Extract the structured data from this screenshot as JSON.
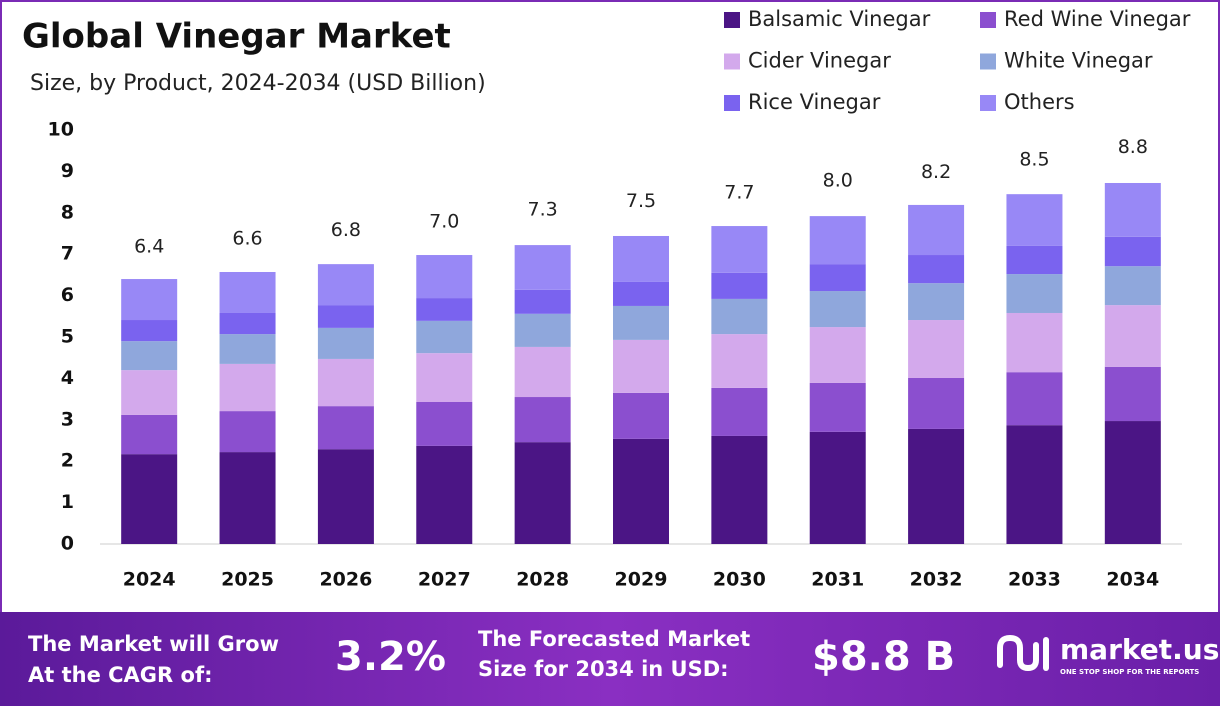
{
  "chart_data": {
    "type": "bar",
    "stacked": true,
    "title": "Global Vinegar Market",
    "subtitle": "Size, by Product, 2024-2034 (USD Billion)",
    "categories": [
      "2024",
      "2025",
      "2026",
      "2027",
      "2028",
      "2029",
      "2030",
      "2031",
      "2032",
      "2033",
      "2034"
    ],
    "series": [
      {
        "name": "Balsamic Vinegar",
        "color": "#4b1585",
        "values": [
          2.17,
          2.22,
          2.29,
          2.37,
          2.46,
          2.54,
          2.61,
          2.71,
          2.78,
          2.87,
          2.97
        ]
      },
      {
        "name": "Red Wine Vinegar",
        "color": "#8b4fcf",
        "values": [
          0.95,
          0.99,
          1.04,
          1.06,
          1.09,
          1.11,
          1.16,
          1.18,
          1.23,
          1.28,
          1.31
        ]
      },
      {
        "name": "Cider Vinegar",
        "color": "#d3a9ec",
        "values": [
          1.08,
          1.14,
          1.14,
          1.18,
          1.21,
          1.28,
          1.3,
          1.35,
          1.4,
          1.43,
          1.49
        ]
      },
      {
        "name": "White Vinegar",
        "color": "#8fa7dc",
        "values": [
          0.7,
          0.72,
          0.75,
          0.78,
          0.8,
          0.82,
          0.85,
          0.87,
          0.89,
          0.94,
          0.94
        ]
      },
      {
        "name": "Rice Vinegar",
        "color": "#7a63ef",
        "values": [
          0.51,
          0.51,
          0.55,
          0.55,
          0.58,
          0.58,
          0.63,
          0.65,
          0.68,
          0.68,
          0.71
        ]
      },
      {
        "name": "Others",
        "color": "#9888f6",
        "values": [
          0.99,
          0.99,
          0.99,
          1.04,
          1.08,
          1.11,
          1.13,
          1.16,
          1.21,
          1.25,
          1.3
        ]
      }
    ],
    "totals": {
      "values": [
        6.4,
        6.6,
        6.8,
        7.0,
        7.3,
        7.5,
        7.7,
        8.0,
        8.2,
        8.5,
        8.8
      ],
      "value_labels": [
        "6.4",
        "6.6",
        "6.8",
        "7.0",
        "7.3",
        "7.5",
        "7.7",
        "8.0",
        "8.2",
        "8.5",
        "8.8"
      ]
    },
    "ylim": [
      0,
      10
    ],
    "yticks": [
      0,
      1,
      2,
      3,
      4,
      5,
      6,
      7,
      8,
      9,
      10
    ],
    "grid": false
  },
  "footer": {
    "cagr_label": [
      "The Market will Grow",
      "At the CAGR of:"
    ],
    "cagr_value": "3.2%",
    "forecast_label": [
      "The Forecasted Market",
      "Size for 2034 in USD:"
    ],
    "forecast_value": "$8.8 B",
    "brand": "market.us",
    "tagline": "ONE STOP SHOP FOR THE REPORTS"
  }
}
